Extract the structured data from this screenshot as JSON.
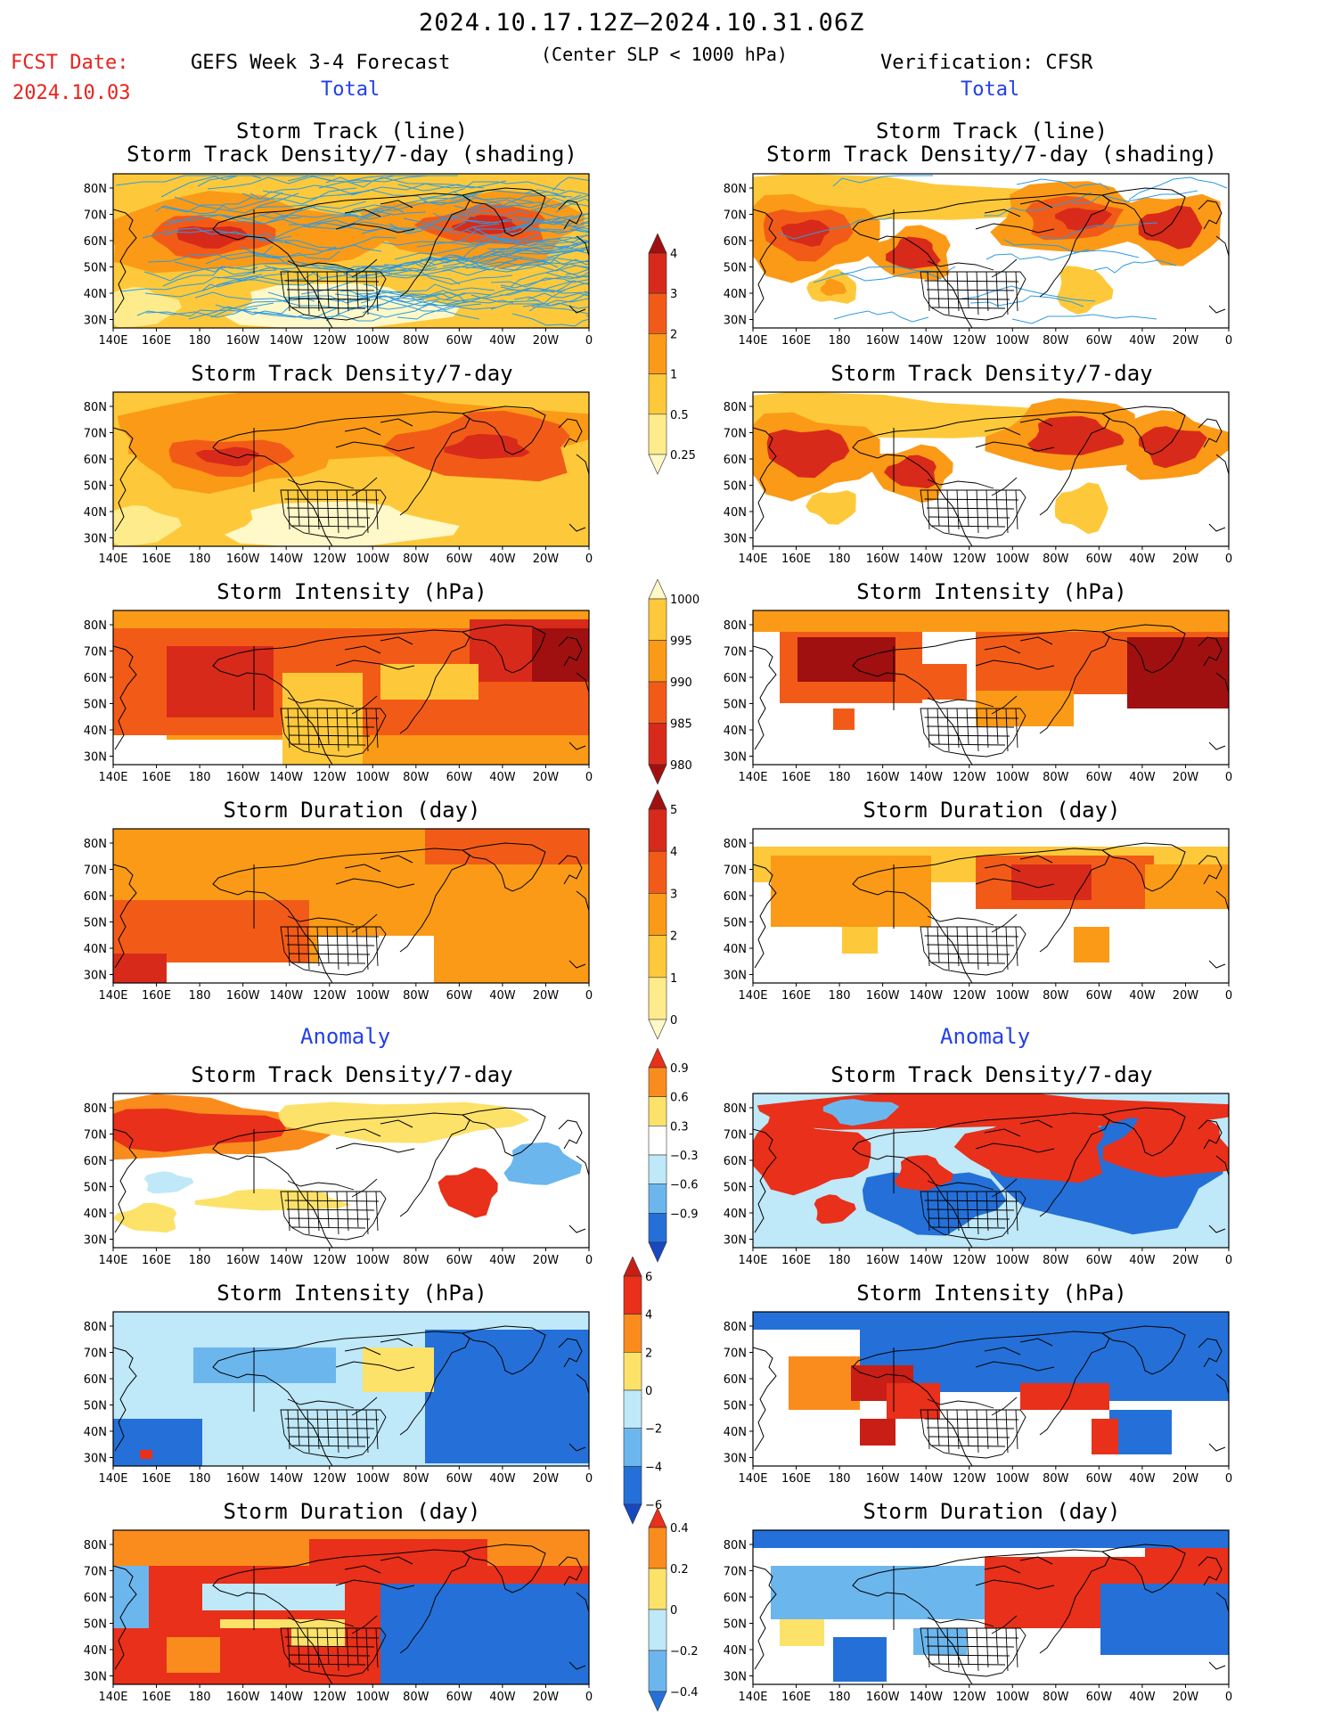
{
  "header": {
    "period": "2024.10.17.12Z–2024.10.31.06Z",
    "fcst_label": "FCST Date:",
    "fcst_date": "2024.10.03",
    "left_title": "GEFS Week 3-4 Forecast",
    "center_note": "(Center SLP < 1000 hPa)",
    "right_title": "Verification: CFSR"
  },
  "sections": {
    "total": "Total",
    "anomaly": "Anomaly"
  },
  "panel_titles": {
    "track_line": "Storm Track (line)",
    "track_shading": "Storm Track Density/7-day (shading)",
    "density": "Storm Track Density/7-day",
    "intensity": "Storm Intensity (hPa)",
    "duration": "Storm Duration (day)"
  },
  "lat_labels": [
    "80N",
    "70N",
    "60N",
    "50N",
    "40N",
    "30N"
  ],
  "lon_labels": [
    "140E",
    "160E",
    "180",
    "160W",
    "140W",
    "120W",
    "100W",
    "80W",
    "60W",
    "40W",
    "20W",
    "0"
  ],
  "colorbars": {
    "density_total": {
      "labels": [
        "4",
        "3",
        "2",
        "1",
        "0.5",
        "0.25"
      ],
      "colors": [
        "#a01010",
        "#d82a1a",
        "#f25b17",
        "#fb9a16",
        "#fdc93a",
        "#feeb8c",
        "#fff8c8"
      ]
    },
    "intensity_total": {
      "labels": [
        "1000",
        "995",
        "990",
        "985",
        "980"
      ],
      "colors": [
        "#fff8c8",
        "#fdc93a",
        "#fb9a16",
        "#f25b17",
        "#d82a1a",
        "#a01010"
      ]
    },
    "duration_total": {
      "labels": [
        "5",
        "4",
        "3",
        "2",
        "1",
        "0"
      ],
      "colors": [
        "#a01010",
        "#d82a1a",
        "#f25b17",
        "#fb9a16",
        "#fdc93a",
        "#feeb8c",
        "#fff8c8"
      ]
    },
    "density_anom": {
      "labels": [
        "0.9",
        "0.6",
        "0.3",
        "−0.3",
        "−0.6",
        "−0.9"
      ],
      "colors": [
        "#e8301a",
        "#fa8c1e",
        "#fde26a",
        "#ffffff",
        "#bfe8f8",
        "#6cb6ee",
        "#2470d8",
        "#1848c0"
      ]
    },
    "intensity_anom": {
      "labels": [
        "6",
        "4",
        "2",
        "0",
        "−2",
        "−4",
        "−6"
      ],
      "colors": [
        "#c81e16",
        "#e8301a",
        "#fa8c1e",
        "#fde26a",
        "#bfe8f8",
        "#6cb6ee",
        "#2470d8",
        "#1848c0"
      ]
    },
    "duration_anom": {
      "labels": [
        "0.4",
        "0.2",
        "0",
        "−0.2",
        "−0.4"
      ],
      "colors": [
        "#e8301a",
        "#fa8c1e",
        "#fde26a",
        "#bfe8f8",
        "#6cb6ee",
        "#2470d8"
      ]
    }
  },
  "colors": {
    "ocean_white": "#ffffff",
    "blue_text": "#2340e6",
    "red_text": "#e8221e",
    "track_line": "#2f9be0"
  }
}
